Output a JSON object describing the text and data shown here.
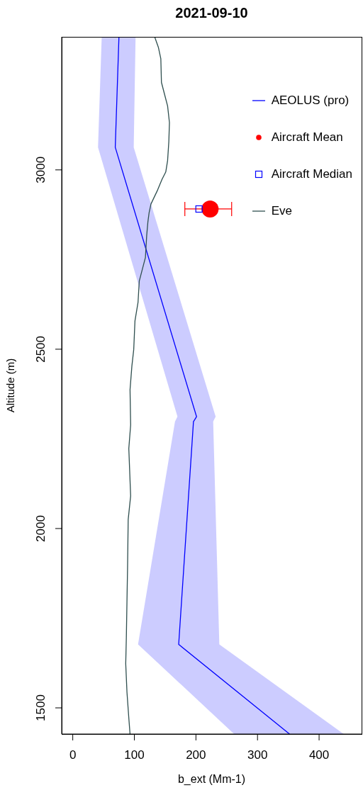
{
  "chart_data": {
    "type": "line",
    "orientation": "horizontal",
    "title": "2021-09-10",
    "xlabel": "b_ext (Mm-1)",
    "ylabel": "Altitude (m)",
    "xlim": [
      -18,
      469
    ],
    "xticks": [
      0,
      100,
      200,
      300,
      400
    ],
    "ylim": [
      1427,
      3371
    ],
    "yticks": [
      1500,
      2000,
      2500,
      3000
    ],
    "legend": "top right",
    "series": [
      {
        "name": "AEOLUS (pro)",
        "color": "#0000ff",
        "x": [
          3371,
          3063,
          2312,
          2298,
          1677,
          1427
        ],
        "values": [
          75,
          69,
          201,
          196,
          172,
          352
        ],
        "lower": [
          47,
          41,
          170,
          166,
          106,
          262
        ],
        "upper": [
          102,
          99,
          232,
          228,
          238,
          440
        ]
      },
      {
        "name": "Aircraft Mean",
        "type": "scatter",
        "color": "#ff0000",
        "marker": "circle",
        "x": [
          2891
        ],
        "values": [
          223
        ],
        "errors": [
          [
            182,
            258
          ]
        ]
      },
      {
        "name": "Aircraft Median",
        "type": "scatter",
        "color": "#0000ff",
        "marker": "square",
        "x": [
          2891
        ],
        "values": [
          205
        ]
      },
      {
        "name": "Eve",
        "color": "#2f4f4f",
        "x": [
          3371,
          3342,
          3310,
          3244,
          3211,
          3178,
          3132,
          3079,
          3026,
          2994,
          2974,
          2941,
          2905,
          2881,
          2855,
          2816,
          2756,
          2690,
          2631,
          2579,
          2499,
          2453,
          2387,
          2289,
          2223,
          2091,
          2025,
          1893,
          1795,
          1696,
          1623,
          1544,
          1472,
          1427
        ],
        "values": [
          133,
          139,
          143,
          144,
          149,
          154,
          157,
          156,
          154,
          151,
          145,
          137,
          127,
          124,
          122,
          120,
          118,
          108,
          106,
          101,
          99,
          96,
          93,
          94,
          91,
          94,
          90,
          89,
          88,
          87,
          86,
          88,
          91,
          93
        ]
      }
    ]
  }
}
